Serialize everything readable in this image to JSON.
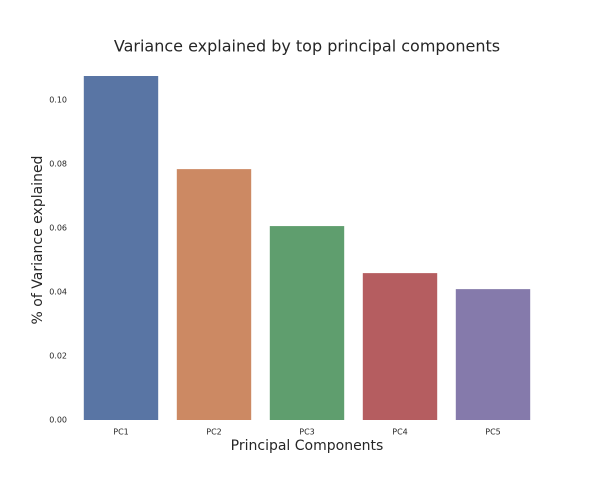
{
  "chart_data": {
    "type": "bar",
    "title": "Variance explained by top principal components",
    "xlabel": "Principal Components",
    "ylabel": "% of Variance explained",
    "categories": [
      "PC1",
      "PC2",
      "PC3",
      "PC4",
      "PC5"
    ],
    "values": [
      0.1075,
      0.0784,
      0.0606,
      0.0459,
      0.0409
    ],
    "colors": [
      "#5975a4",
      "#cc8963",
      "#5f9e6e",
      "#b55d60",
      "#857aab"
    ],
    "ylim": [
      0,
      0.1075
    ],
    "yticks": [
      {
        "value": 0,
        "label": "0.00"
      },
      {
        "value": 0.02,
        "label": "0.02"
      },
      {
        "value": 0.04,
        "label": "0.04"
      },
      {
        "value": 0.06,
        "label": "0.06"
      },
      {
        "value": 0.08,
        "label": "0.08"
      },
      {
        "value": 0.1,
        "label": "0.10"
      }
    ],
    "grid": false
  }
}
